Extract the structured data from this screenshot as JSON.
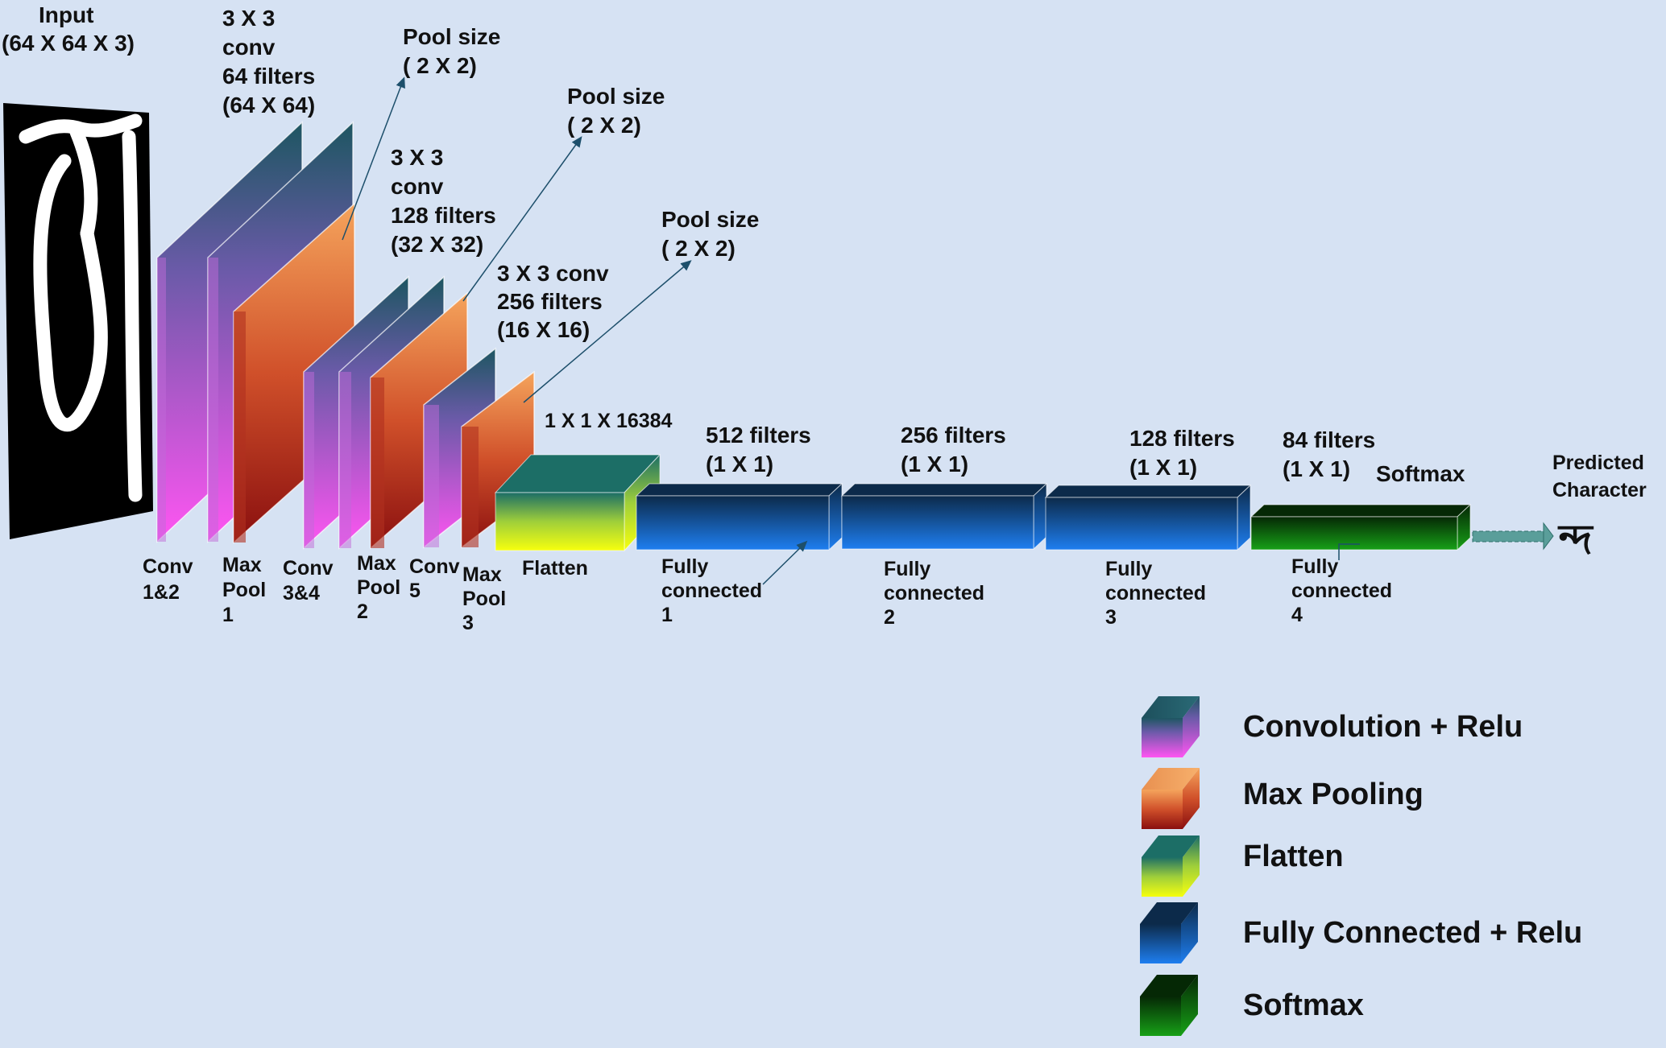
{
  "colors": {
    "background": "#d6e2f3",
    "conv_top": "#1d5661",
    "conv_bottom": "#ff55f2",
    "pool_top": "#f5a45c",
    "pool_bottom": "#8a0f0f",
    "flatten_top": "#1c6e66",
    "flatten_bottom": "#f6ff0e",
    "fc_top": "#0c2a4a",
    "fc_bottom": "#1e7ef0",
    "softmax_top": "#052805",
    "softmax_bottom": "#17a017",
    "arrow": "#5a9e9a"
  },
  "input": {
    "title": "Input",
    "shape": "(64 X 64 X 3)",
    "predicted": "Predicted",
    "character": "Character",
    "glyph": "ন্দ"
  },
  "annotations": {
    "conv12": [
      "3 X 3",
      "conv",
      "64 filters",
      "(64 X 64)"
    ],
    "pool1": [
      "Pool size",
      "( 2 X 2)"
    ],
    "conv34": [
      "3 X 3",
      "conv",
      "128 filters",
      "(32 X 32)"
    ],
    "pool2": [
      "Pool size",
      "( 2 X 2)"
    ],
    "conv5": [
      "3 X 3 conv",
      "256 filters",
      "(16 X 16)"
    ],
    "pool3": [
      "Pool size",
      "( 2 X 2)"
    ],
    "flatten": "1 X 1 X 16384",
    "fc1": [
      "512 filters",
      "(1 X 1)"
    ],
    "fc2": [
      "256 filters",
      "(1 X 1)"
    ],
    "fc3": [
      "128 filters",
      "(1 X 1)"
    ],
    "fc4": [
      "84 filters",
      "(1 X 1)"
    ],
    "softmax": "Softmax"
  },
  "bottom_labels": {
    "conv12": [
      "Conv",
      "1&2"
    ],
    "pool1": [
      "Max",
      "Pool",
      "1"
    ],
    "conv34": [
      "Conv",
      "3&4"
    ],
    "pool2": [
      "Max",
      "Pool",
      "2"
    ],
    "conv5": [
      "Conv",
      "5"
    ],
    "pool3": [
      "Max",
      "Pool",
      "3"
    ],
    "flatten": "Flatten",
    "fc1": [
      "Fully",
      "connected",
      "1"
    ],
    "fc2": [
      "Fully",
      "connected",
      "2"
    ],
    "fc3": [
      "Fully",
      "connected",
      "3"
    ],
    "fc4": [
      "Fully",
      "connected",
      "4"
    ]
  },
  "legend": [
    {
      "label": "Convolution + Relu",
      "kind": "conv"
    },
    {
      "label": "Max Pooling",
      "kind": "pool"
    },
    {
      "label": "Flatten",
      "kind": "flatten"
    },
    {
      "label": "Fully Connected + Relu",
      "kind": "fc"
    },
    {
      "label": "Softmax",
      "kind": "softmax"
    }
  ]
}
